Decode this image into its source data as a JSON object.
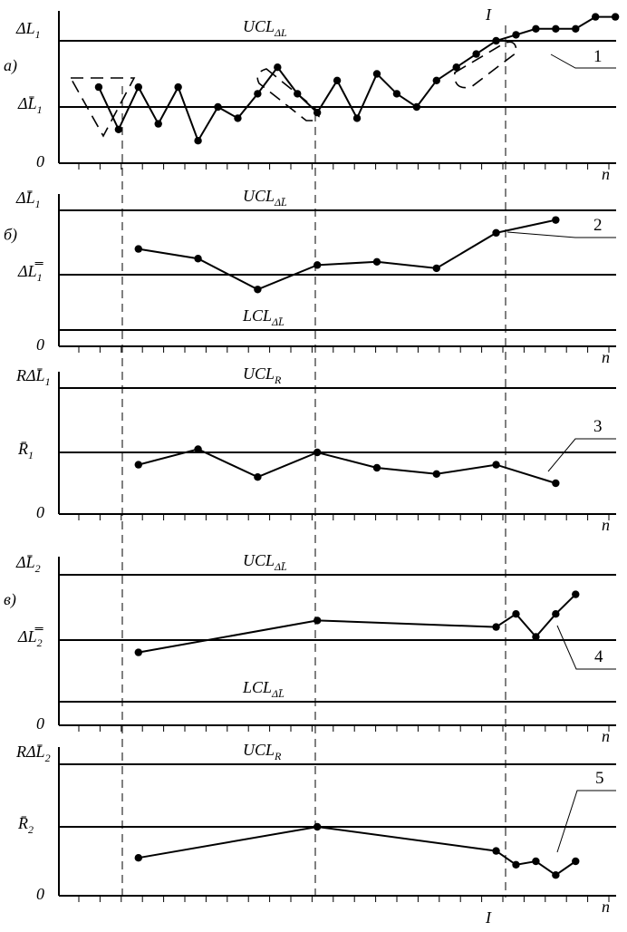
{
  "chart_data": [
    {
      "type": "line",
      "panel": "а)",
      "x_axis_label": "n",
      "y_axis_origin": "0",
      "y_axis_top_label": "ΔL1",
      "control_lines": [
        {
          "name": "UCL",
          "sub": "ΔL",
          "value": 2.0
        },
        {
          "name": "ΔL̄1",
          "sub": "",
          "value": 1.0
        }
      ],
      "series": [
        {
          "marker": "1",
          "x": [
            2,
            4,
            6,
            8,
            10,
            12,
            14,
            16,
            18,
            20,
            22,
            24,
            26,
            28,
            30,
            32,
            34,
            36,
            38,
            40,
            42,
            44,
            46,
            48,
            50,
            52,
            54
          ],
          "y": [
            1.3,
            0.6,
            1.3,
            0.7,
            1.3,
            0.4,
            1.0,
            0.8,
            1.2,
            1.6,
            1.2,
            0.9,
            1.4,
            0.8,
            1.5,
            1.2,
            1.0,
            1.4,
            1.6,
            1.8,
            2.0,
            2.1,
            2.2,
            2.2,
            2.2,
            2.4,
            2.4
          ]
        }
      ],
      "ylim": [
        0,
        2.5
      ]
    },
    {
      "type": "line",
      "panel": "б)",
      "x_axis_label": "n",
      "y_axis_origin": "0",
      "y_axis_top_label": "ΔL̄1",
      "control_lines": [
        {
          "name": "UCL",
          "sub": "ΔL̄",
          "value": 2.0
        },
        {
          "name": "ΔL̿1",
          "sub": "",
          "value": 1.0
        },
        {
          "name": "LCL",
          "sub": "ΔL̄",
          "value": 0.25
        }
      ],
      "series": [
        {
          "marker": "2",
          "x": [
            6,
            12,
            18,
            24,
            30,
            36,
            42,
            48
          ],
          "y": [
            1.4,
            1.25,
            0.8,
            1.15,
            1.2,
            1.1,
            1.65,
            1.85
          ]
        }
      ],
      "ylim": [
        0,
        2.0
      ]
    },
    {
      "type": "line",
      "panel": "",
      "x_axis_label": "n",
      "y_axis_origin": "0",
      "y_axis_top_label": "RΔL̄1",
      "control_lines": [
        {
          "name": "UCL",
          "sub": "R",
          "value": 2.0
        },
        {
          "name": "R̄1",
          "sub": "",
          "value": 1.0
        }
      ],
      "series": [
        {
          "marker": "3",
          "x": [
            6,
            12,
            18,
            24,
            30,
            36,
            42,
            48
          ],
          "y": [
            0.8,
            1.05,
            0.6,
            1.0,
            0.75,
            0.65,
            0.8,
            0.5
          ]
        }
      ],
      "ylim": [
        0,
        2.0
      ]
    },
    {
      "type": "line",
      "panel": "в)",
      "x_axis_label": "n",
      "y_axis_origin": "0",
      "y_axis_top_label": "ΔL̄2",
      "control_lines": [
        {
          "name": "UCL",
          "sub": "ΔL̄",
          "value": 2.0
        },
        {
          "name": "ΔL̿2",
          "sub": "",
          "value": 1.0
        },
        {
          "name": "LCL",
          "sub": "ΔL̄",
          "value": 0.25
        }
      ],
      "series": [
        {
          "marker": "4",
          "x": [
            6,
            24,
            42,
            44,
            46,
            48,
            50
          ],
          "y": [
            0.85,
            1.3,
            1.2,
            1.4,
            1.05,
            1.4,
            1.7
          ]
        }
      ],
      "ylim": [
        0,
        2.0
      ]
    },
    {
      "type": "line",
      "panel": "",
      "x_axis_label": "n",
      "y_axis_origin": "0",
      "y_axis_top_label": "RΔL̄2",
      "control_lines": [
        {
          "name": "UCL",
          "sub": "R",
          "value": 2.0
        },
        {
          "name": "R̄2",
          "sub": "",
          "value": 1.0
        }
      ],
      "series": [
        {
          "marker": "5",
          "x": [
            6,
            24,
            42,
            44,
            46,
            48,
            50
          ],
          "y": [
            0.55,
            1.0,
            0.65,
            0.45,
            0.5,
            0.3,
            0.5
          ]
        }
      ],
      "ylim": [
        0,
        2.0
      ]
    }
  ],
  "vline_label": "I"
}
